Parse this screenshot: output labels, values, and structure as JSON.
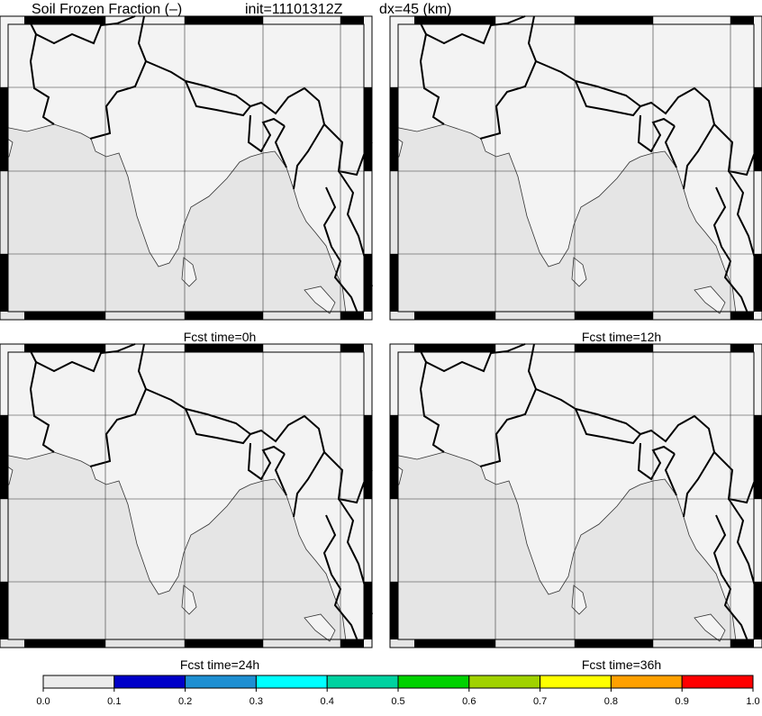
{
  "chart_data": {
    "type": "map",
    "title": "Soil Frozen Fraction (–)",
    "init": "init=11101312Z",
    "resolution": "dx=45 (km)",
    "panels": [
      {
        "label": "Fcst time=0h"
      },
      {
        "label": "Fcst time=12h"
      },
      {
        "label": "Fcst time=24h"
      },
      {
        "label": "Fcst time=36h"
      }
    ],
    "colorbar": {
      "ticks": [
        {
          "value": 0,
          "label": "0.0"
        },
        0.1,
        0.2,
        0.3,
        0.4,
        0.5,
        0.6,
        0.7,
        0.8,
        0.9,
        {
          "value": 1,
          "label": "1.0"
        }
      ],
      "colors": [
        "#ebebeb",
        "#0000c8",
        "#1e8fd2",
        "#00ffff",
        "#00d2a0",
        "#00d200",
        "#a0d200",
        "#ffff00",
        "#ffa000",
        "#ff0000"
      ]
    }
  }
}
